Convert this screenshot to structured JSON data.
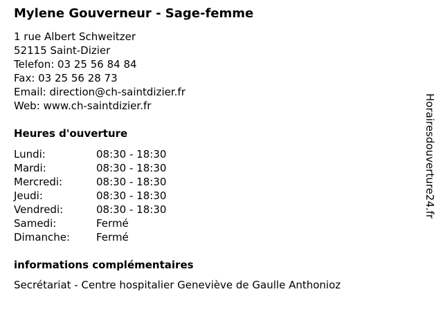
{
  "title": "Mylene Gouverneur - Sage-femme",
  "address": {
    "street": "1 rue Albert Schweitzer",
    "city": "52115 Saint-Dizier",
    "phone": "Telefon: 03 25 56 84 84",
    "fax": "Fax: 03 25 56 28 73",
    "email": "Email: direction@ch-saintdizier.fr",
    "web": "Web: www.ch-saintdizier.fr"
  },
  "hours": {
    "heading": "Heures d'ouverture",
    "rows": [
      {
        "day": "Lundi:",
        "time": "08:30 - 18:30"
      },
      {
        "day": "Mardi:",
        "time": "08:30 - 18:30"
      },
      {
        "day": "Mercredi:",
        "time": "08:30 - 18:30"
      },
      {
        "day": "Jeudi:",
        "time": "08:30 - 18:30"
      },
      {
        "day": "Vendredi:",
        "time": "08:30 - 18:30"
      },
      {
        "day": "Samedi:",
        "time": "Fermé"
      },
      {
        "day": "Dimanche:",
        "time": "Fermé"
      }
    ]
  },
  "info": {
    "heading": "informations complémentaires",
    "text": "Secrétariat - Centre hospitalier Geneviève de Gaulle Anthonioz"
  },
  "watermark": "Horairesdouverture24.fr"
}
